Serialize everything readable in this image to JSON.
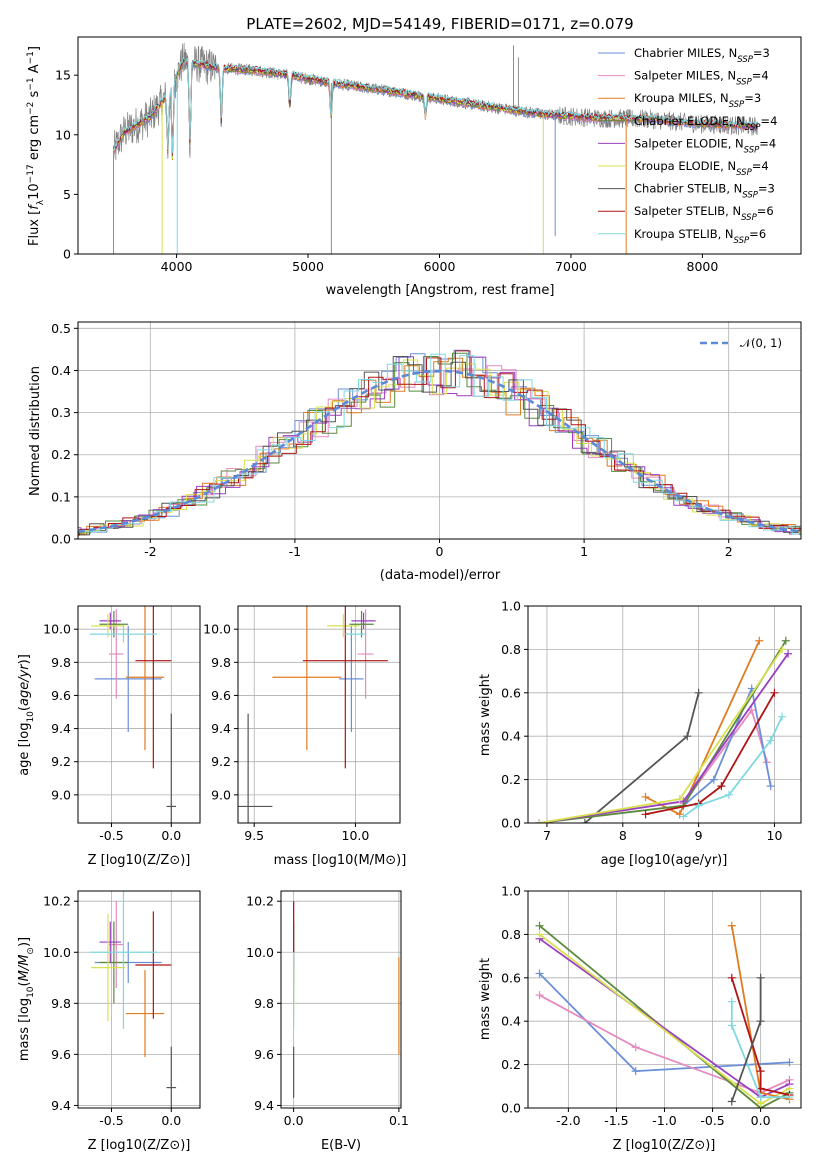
{
  "colors": {
    "Chabrier MILES": "#6a8fd8",
    "Salpeter MILES": "#e58ac0",
    "Kroupa MILES": "#e07b20",
    "Chabrier ELODIE": "#5a8a3c",
    "Salpeter ELODIE": "#9a3fc0",
    "Kroupa ELODIE": "#d8e050",
    "Chabrier STELIB": "#555555",
    "Salpeter STELIB": "#b01515",
    "Kroupa STELIB": "#80d8e0"
  },
  "chart_data": [
    {
      "id": "spectrum",
      "type": "line",
      "title": "PLATE=2602, MJD=54149, FIBERID=0171, z=0.079",
      "xlabel": "wavelength [Angstrom, rest frame]",
      "ylabel": "Flux [f_λ10^-17 erg cm^-2 s^-1 A^-1]",
      "xlim": [
        3250,
        8750
      ],
      "ylim": [
        0,
        18.2
      ],
      "xticks": [
        "4000",
        "5000",
        "6000",
        "7000",
        "8000"
      ],
      "yticks": [
        "0",
        "5",
        "10",
        "15"
      ],
      "legend_position": "upper right",
      "legend": [
        {
          "model": "Chabrier MILES",
          "nssp": "3"
        },
        {
          "model": "Salpeter MILES",
          "nssp": "4"
        },
        {
          "model": "Kroupa MILES",
          "nssp": "3"
        },
        {
          "model": "Chabrier ELODIE",
          "nssp": "4"
        },
        {
          "model": "Salpeter ELODIE",
          "nssp": "4"
        },
        {
          "model": "Kroupa ELODIE",
          "nssp": "4"
        },
        {
          "model": "Chabrier STELIB",
          "nssp": "3"
        },
        {
          "model": "Salpeter STELIB",
          "nssp": "6"
        },
        {
          "model": "Kroupa STELIB",
          "nssp": "6"
        }
      ],
      "data_range": [
        3520,
        8420
      ],
      "continuum": [
        [
          3520,
          8.6
        ],
        [
          3600,
          10.2
        ],
        [
          3800,
          11.5
        ],
        [
          3950,
          13.6
        ],
        [
          4050,
          16.2
        ],
        [
          4300,
          15.6
        ],
        [
          4600,
          15.4
        ],
        [
          4900,
          14.9
        ],
        [
          5200,
          14.3
        ],
        [
          5600,
          13.7
        ],
        [
          6000,
          13.0
        ],
        [
          6400,
          12.3
        ],
        [
          6800,
          11.7
        ],
        [
          7200,
          11.4
        ],
        [
          7600,
          11.3
        ],
        [
          8000,
          10.9
        ],
        [
          8420,
          10.7
        ]
      ],
      "absorption": [
        [
          3934,
          4.8
        ],
        [
          3969,
          6.0
        ],
        [
          4102,
          6.8
        ],
        [
          4340,
          4.5
        ],
        [
          4861,
          2.6
        ],
        [
          5175,
          3.0
        ],
        [
          5893,
          1.7
        ]
      ],
      "spikes_data": [
        [
          5177,
          0
        ],
        [
          6563,
          17.5
        ],
        [
          6600,
          16.5
        ]
      ],
      "drops_model": [
        [
          3520,
          0,
          "Kroupa MILES"
        ],
        [
          3890,
          0,
          "Kroupa ELODIE"
        ],
        [
          4005,
          0,
          "Kroupa STELIB"
        ],
        [
          6790,
          0,
          "Kroupa ELODIE"
        ],
        [
          7420,
          0,
          "Kroupa MILES"
        ],
        [
          6880,
          1.5,
          "Chabrier MILES"
        ]
      ]
    },
    {
      "id": "residuals",
      "type": "histogram",
      "xlabel": "(data-model)/error",
      "ylabel": "Normed distribution",
      "xlim": [
        -2.5,
        2.5
      ],
      "ylim": [
        0,
        0.515
      ],
      "xticks": [
        "-2",
        "-1",
        "0",
        "1",
        "2"
      ],
      "yticks": [
        "0.0",
        "0.1",
        "0.2",
        "0.3",
        "0.4",
        "0.5"
      ],
      "reference_curve": "𝒩(0, 1)",
      "legend_position": "upper right"
    },
    {
      "id": "age_vs_Z",
      "type": "errorbar",
      "xlabel": "Z [log10(Z/Z⊙)]",
      "ylabel": "age  [log10(age/yr)]",
      "xlim": [
        -0.78,
        0.24
      ],
      "ylim": [
        8.83,
        10.14
      ],
      "xticks": [
        "-0.5",
        "0.0"
      ],
      "yticks": [
        "9.0",
        "9.2",
        "9.4",
        "9.6",
        "9.8",
        "10.0"
      ],
      "points": [
        {
          "model": "Chabrier MILES",
          "x": -0.36,
          "xerr": 0.28,
          "y": 9.7,
          "yerr": 0.32
        },
        {
          "model": "Salpeter MILES",
          "x": -0.46,
          "xerr": 0.06,
          "y": 9.85,
          "yerr": 0.27
        },
        {
          "model": "Kroupa MILES",
          "x": -0.22,
          "xerr": 0.16,
          "y": 9.71,
          "yerr": 0.44
        },
        {
          "model": "Chabrier ELODIE",
          "x": -0.48,
          "xerr": 0.12,
          "y": 10.03,
          "yerr": 0.08
        },
        {
          "model": "Salpeter ELODIE",
          "x": -0.51,
          "xerr": 0.09,
          "y": 10.05,
          "yerr": 0.05
        },
        {
          "model": "Kroupa ELODIE",
          "x": -0.53,
          "xerr": 0.14,
          "y": 10.02,
          "yerr": 0.07
        },
        {
          "model": "Chabrier STELIB",
          "x": 0.0,
          "xerr": 0.04,
          "y": 8.93,
          "yerr": 0.56
        },
        {
          "model": "Salpeter STELIB",
          "x": -0.15,
          "xerr": 0.15,
          "y": 9.81,
          "yerr": 0.65
        },
        {
          "model": "Kroupa STELIB",
          "x": -0.4,
          "xerr": 0.28,
          "y": 9.97,
          "yerr": 0.05
        }
      ]
    },
    {
      "id": "age_vs_mass",
      "type": "errorbar",
      "xlabel": "mass [log10(M/M⊙)]",
      "xlim": [
        9.42,
        10.22
      ],
      "ylim": [
        8.83,
        10.14
      ],
      "xticks": [
        "9.5",
        "10.0"
      ],
      "yticks": [
        "9.0",
        "9.2",
        "9.4",
        "9.6",
        "9.8",
        "10.0"
      ],
      "points": [
        {
          "model": "Chabrier MILES",
          "x": 9.98,
          "xerr": 0.06,
          "y": 9.7,
          "yerr": 0.32
        },
        {
          "model": "Salpeter MILES",
          "x": 10.05,
          "xerr": 0.04,
          "y": 9.85,
          "yerr": 0.27
        },
        {
          "model": "Kroupa MILES",
          "x": 9.76,
          "xerr": 0.17,
          "y": 9.71,
          "yerr": 0.44
        },
        {
          "model": "Chabrier ELODIE",
          "x": 10.03,
          "xerr": 0.06,
          "y": 10.03,
          "yerr": 0.08
        },
        {
          "model": "Salpeter ELODIE",
          "x": 10.04,
          "xerr": 0.06,
          "y": 10.05,
          "yerr": 0.05
        },
        {
          "model": "Kroupa ELODIE",
          "x": 9.94,
          "xerr": 0.08,
          "y": 10.02,
          "yerr": 0.07
        },
        {
          "model": "Chabrier STELIB",
          "x": 9.47,
          "xerr": 0.12,
          "y": 8.93,
          "yerr": 0.56
        },
        {
          "model": "Salpeter STELIB",
          "x": 9.95,
          "xerr": 0.21,
          "y": 9.81,
          "yerr": 0.65
        },
        {
          "model": "Kroupa STELIB",
          "x": 10.0,
          "xerr": 0.05,
          "y": 9.97,
          "yerr": 0.05
        }
      ]
    },
    {
      "id": "weight_vs_age",
      "type": "line",
      "xlabel": "age  [log10(age/yr)]",
      "ylabel": "mass weight",
      "xlim": [
        6.75,
        10.35
      ],
      "ylim": [
        0,
        1.0
      ],
      "xticks": [
        "7",
        "8",
        "9",
        "10"
      ],
      "yticks": [
        "0.0",
        "0.2",
        "0.4",
        "0.6",
        "0.8",
        "1.0"
      ],
      "series": [
        {
          "model": "Chabrier STELIB",
          "points": [
            [
              7.5,
              0.0
            ],
            [
              8.85,
              0.4
            ],
            [
              9.0,
              0.6
            ]
          ]
        },
        {
          "model": "Kroupa MILES",
          "points": [
            [
              8.3,
              0.12
            ],
            [
              8.75,
              0.04
            ],
            [
              9.8,
              0.84
            ]
          ]
        },
        {
          "model": "Salpeter MILES",
          "points": [
            [
              8.8,
              0.09
            ],
            [
              9.7,
              0.52
            ],
            [
              9.9,
              0.28
            ]
          ]
        },
        {
          "model": "Chabrier MILES",
          "points": [
            [
              8.8,
              0.08
            ],
            [
              9.2,
              0.2
            ],
            [
              9.7,
              0.62
            ],
            [
              9.95,
              0.17
            ]
          ]
        },
        {
          "model": "Chabrier ELODIE",
          "points": [
            [
              6.9,
              0.0
            ],
            [
              8.8,
              0.08
            ],
            [
              10.15,
              0.84
            ]
          ]
        },
        {
          "model": "Salpeter ELODIE",
          "points": [
            [
              6.9,
              0.0
            ],
            [
              8.8,
              0.1
            ],
            [
              10.18,
              0.78
            ]
          ]
        },
        {
          "model": "Kroupa ELODIE",
          "points": [
            [
              6.9,
              0.0
            ],
            [
              8.75,
              0.11
            ],
            [
              10.1,
              0.8
            ]
          ]
        },
        {
          "model": "Salpeter STELIB",
          "points": [
            [
              8.3,
              0.04
            ],
            [
              9.0,
              0.09
            ],
            [
              9.3,
              0.17
            ],
            [
              10.0,
              0.6
            ]
          ]
        },
        {
          "model": "Kroupa STELIB",
          "points": [
            [
              8.8,
              0.03
            ],
            [
              9.0,
              0.08
            ],
            [
              9.4,
              0.13
            ],
            [
              9.95,
              0.38
            ],
            [
              10.1,
              0.49
            ]
          ]
        }
      ]
    },
    {
      "id": "mass_vs_Z",
      "type": "errorbar",
      "xlabel": "Z [log10(Z/Z⊙)]",
      "ylabel": "mass [log10(M/M⊙)]",
      "xlim": [
        -0.78,
        0.24
      ],
      "ylim": [
        9.39,
        10.24
      ],
      "xticks": [
        "-0.5",
        "0.0"
      ],
      "yticks": [
        "9.4",
        "9.6",
        "9.8",
        "10.0",
        "10.2"
      ],
      "points": [
        {
          "model": "Chabrier MILES",
          "x": -0.36,
          "xerr": 0.28,
          "y": 9.96,
          "yerr": 0.08
        },
        {
          "model": "Salpeter MILES",
          "x": -0.46,
          "xerr": 0.06,
          "y": 10.03,
          "yerr": 0.17
        },
        {
          "model": "Kroupa MILES",
          "x": -0.22,
          "xerr": 0.16,
          "y": 9.76,
          "yerr": 0.17
        },
        {
          "model": "Chabrier ELODIE",
          "x": -0.48,
          "xerr": 0.12,
          "y": 9.96,
          "yerr": 0.16
        },
        {
          "model": "Salpeter ELODIE",
          "x": -0.51,
          "xerr": 0.09,
          "y": 10.04,
          "yerr": 0.08
        },
        {
          "model": "Kroupa ELODIE",
          "x": -0.53,
          "xerr": 0.14,
          "y": 9.94,
          "yerr": 0.21
        },
        {
          "model": "Chabrier STELIB",
          "x": 0.0,
          "xerr": 0.04,
          "y": 9.47,
          "yerr": 0.16
        },
        {
          "model": "Salpeter STELIB",
          "x": -0.15,
          "xerr": 0.15,
          "y": 9.95,
          "yerr": 0.21
        },
        {
          "model": "Kroupa STELIB",
          "x": -0.4,
          "xerr": 0.28,
          "y": 10.0,
          "yerr": 0.3
        }
      ]
    },
    {
      "id": "mass_vs_ebv",
      "type": "errorbar",
      "xlabel": "E(B-V)",
      "xlim": [
        -0.012,
        0.102
      ],
      "ylim": [
        9.39,
        10.24
      ],
      "xticks": [
        "0.0",
        "0.1"
      ],
      "yticks": [
        "9.4",
        "9.6",
        "9.8",
        "10.0",
        "10.2"
      ],
      "points": [
        {
          "model": "Chabrier MILES",
          "x": 0.0,
          "xerr": 0.0,
          "y": 9.96,
          "yerr": 0.08
        },
        {
          "model": "Salpeter MILES",
          "x": 0.0,
          "xerr": 0.0,
          "y": 10.03,
          "yerr": 0.17
        },
        {
          "model": "Kroupa MILES",
          "x": 0.1,
          "xerr": 0.0,
          "y": 9.79,
          "yerr": 0.19
        },
        {
          "model": "Chabrier ELODIE",
          "x": 0.0,
          "xerr": 0.0,
          "y": 9.96,
          "yerr": 0.16
        },
        {
          "model": "Salpeter ELODIE",
          "x": 0.0,
          "xerr": 0.0,
          "y": 10.04,
          "yerr": 0.08
        },
        {
          "model": "Kroupa ELODIE",
          "x": 0.0,
          "xerr": 0.0,
          "y": 9.94,
          "yerr": 0.21
        },
        {
          "model": "Chabrier STELIB",
          "x": 0.0,
          "xerr": 0.0,
          "y": 9.53,
          "yerr": 0.1
        },
        {
          "model": "Salpeter STELIB",
          "x": 0.0,
          "xerr": 0.0,
          "y": 10.1,
          "yerr": 0.1
        },
        {
          "model": "Kroupa STELIB",
          "x": 0.0,
          "xerr": 0.0,
          "y": 9.85,
          "yerr": 0.15
        }
      ]
    },
    {
      "id": "weight_vs_Z",
      "type": "line",
      "xlabel": "Z [log10(Z/Z⊙)]",
      "ylabel": "mass weight",
      "xlim": [
        -2.42,
        0.42
      ],
      "ylim": [
        0,
        1.0
      ],
      "xticks": [
        "-2.0",
        "-1.5",
        "-1.0",
        "-0.5",
        "0.0"
      ],
      "yticks": [
        "0.0",
        "0.2",
        "0.4",
        "0.6",
        "0.8",
        "1.0"
      ],
      "series": [
        {
          "model": "Chabrier MILES",
          "points": [
            [
              -2.3,
              0.62
            ],
            [
              -1.3,
              0.17
            ],
            [
              0.3,
              0.21
            ]
          ]
        },
        {
          "model": "Salpeter MILES",
          "points": [
            [
              -2.3,
              0.52
            ],
            [
              -1.3,
              0.28
            ],
            [
              0.0,
              0.07
            ],
            [
              0.3,
              0.13
            ]
          ]
        },
        {
          "model": "Chabrier ELODIE",
          "points": [
            [
              -2.3,
              0.84
            ],
            [
              0.0,
              0.0
            ],
            [
              0.3,
              0.07
            ]
          ]
        },
        {
          "model": "Salpeter ELODIE",
          "points": [
            [
              -2.3,
              0.78
            ],
            [
              0.0,
              0.05
            ],
            [
              0.3,
              0.11
            ]
          ]
        },
        {
          "model": "Kroupa ELODIE",
          "points": [
            [
              -2.3,
              0.8
            ],
            [
              0.0,
              0.02
            ],
            [
              0.3,
              0.09
            ]
          ]
        },
        {
          "model": "Kroupa MILES",
          "points": [
            [
              -0.3,
              0.84
            ],
            [
              0.0,
              0.07
            ],
            [
              0.3,
              0.04
            ]
          ]
        },
        {
          "model": "Salpeter STELIB",
          "points": [
            [
              -0.3,
              0.6
            ],
            [
              0.0,
              0.17
            ],
            [
              0.0,
              0.09
            ],
            [
              0.3,
              0.06
            ]
          ]
        },
        {
          "model": "Kroupa STELIB",
          "points": [
            [
              -0.3,
              0.49
            ],
            [
              -0.3,
              0.38
            ],
            [
              0.0,
              0.05
            ],
            [
              0.3,
              0.05
            ]
          ]
        },
        {
          "model": "Chabrier STELIB",
          "points": [
            [
              -0.3,
              0.03
            ],
            [
              0.0,
              0.4
            ],
            [
              0.0,
              0.6
            ]
          ]
        }
      ]
    }
  ]
}
